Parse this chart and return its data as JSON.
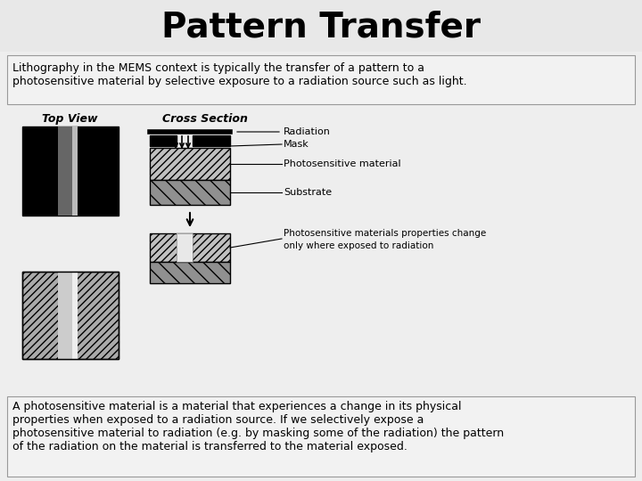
{
  "title": "Pattern Transfer",
  "title_fontsize": 28,
  "title_fontweight": "bold",
  "bg_color": "#eeeeee",
  "top_text_line1": "Lithography in the MEMS context is typically the transfer of a pattern to a",
  "top_text_line2": "photosensitive material by selective exposure to a radiation source such as light.",
  "bottom_text_line1": "A photosensitive material is a material that experiences a change in its physical",
  "bottom_text_line2": "properties when exposed to a radiation source. If we selectively expose a",
  "bottom_text_line3": "photosensitive material to radiation (e.g. by masking some of the radiation) the pattern",
  "bottom_text_line4": "of the radiation on the material is transferred to the material exposed.",
  "top_view_label": "Top View",
  "cross_section_label": "Cross Section",
  "label_radiation": "Radiation",
  "label_mask": "Mask",
  "label_photosensitive": "Photosensitive material",
  "label_substrate": "Substrate",
  "label_change_line1": "Photosensitive materials properties change",
  "label_change_line2": "only where exposed to radiation"
}
